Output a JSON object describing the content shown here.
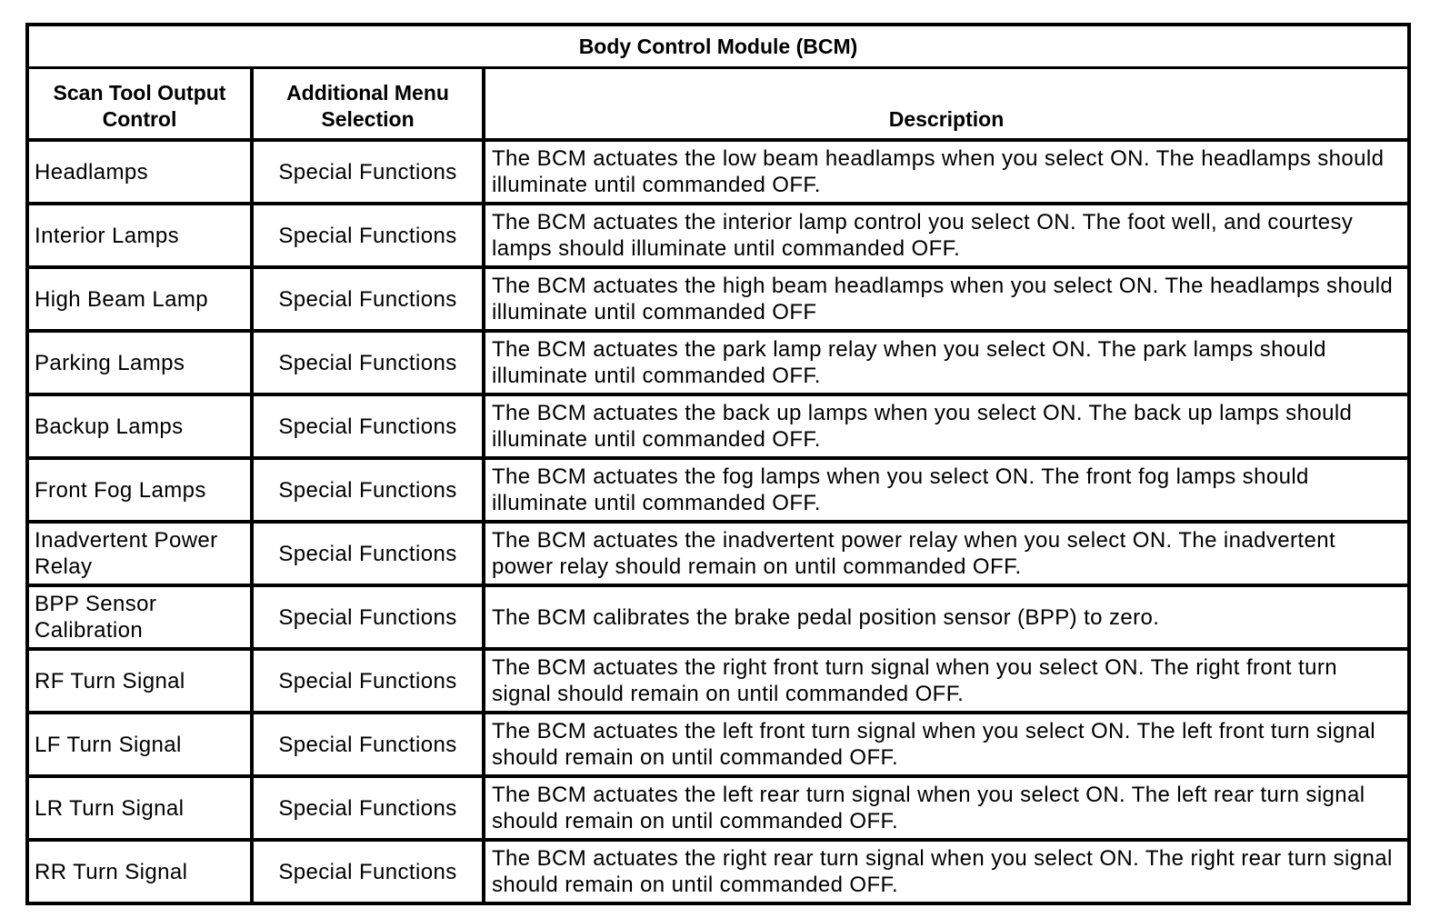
{
  "table": {
    "title": "Body Control Module (BCM)",
    "headers": {
      "control": "Scan Tool Output Control",
      "menu": "Additional Menu Selection",
      "description": "Description"
    },
    "rows": [
      {
        "control": "Headlamps",
        "menu": "Special Functions",
        "description": "The BCM actuates the low beam headlamps when you select ON. The headlamps should illuminate until commanded OFF."
      },
      {
        "control": "Interior Lamps",
        "menu": "Special Functions",
        "description": "The BCM actuates the interior lamp control you select ON. The foot well, and courtesy lamps should illuminate until commanded OFF."
      },
      {
        "control": "High Beam Lamp",
        "menu": "Special Functions",
        "description": "The BCM actuates the high beam headlamps when you select ON. The headlamps should illuminate until commanded OFF"
      },
      {
        "control": "Parking Lamps",
        "menu": "Special Functions",
        "description": "The BCM actuates the park lamp relay when you select ON. The park lamps should illuminate until commanded OFF."
      },
      {
        "control": "Backup Lamps",
        "menu": "Special Functions",
        "description": "The BCM actuates the back up lamps when you select ON. The back up lamps should illuminate until commanded OFF."
      },
      {
        "control": "Front Fog Lamps",
        "menu": "Special Functions",
        "description": "The BCM actuates the fog lamps when you select ON. The front fog lamps should illuminate until commanded OFF."
      },
      {
        "control": "Inadvertent Power Relay",
        "menu": "Special Functions",
        "description": "The BCM actuates the inadvertent power relay when you select ON. The inadvertent power relay should remain on until commanded OFF."
      },
      {
        "control": "BPP Sensor Calibration",
        "menu": "Special Functions",
        "description": "The BCM calibrates the brake pedal position sensor (BPP) to zero."
      },
      {
        "control": "RF Turn Signal",
        "menu": "Special Functions",
        "description": "The BCM actuates the right front turn signal when you select ON. The right front turn signal should remain on until commanded OFF."
      },
      {
        "control": "LF Turn Signal",
        "menu": "Special Functions",
        "description": "The BCM actuates the left front turn signal when you select ON. The left front turn signal should remain on until commanded OFF."
      },
      {
        "control": "LR Turn Signal",
        "menu": "Special Functions",
        "description": "The BCM actuates the left rear turn signal when you select ON. The left rear turn signal should remain on until commanded OFF."
      },
      {
        "control": "RR Turn Signal",
        "menu": "Special Functions",
        "description": "The BCM actuates the right rear turn signal when you select ON. The right rear turn signal should remain on until commanded OFF."
      }
    ]
  }
}
